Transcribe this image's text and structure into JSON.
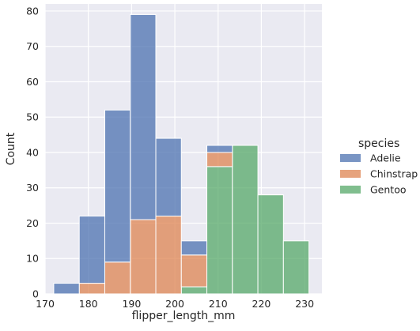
{
  "chart_data": {
    "type": "bar",
    "stacked": true,
    "xlabel": "flipper_length_mm",
    "ylabel": "Count",
    "xlim": [
      170,
      234
    ],
    "ylim": [
      0,
      82
    ],
    "xticks": [
      170,
      180,
      190,
      200,
      210,
      220,
      230
    ],
    "yticks": [
      0,
      10,
      20,
      30,
      40,
      50,
      60,
      70,
      80
    ],
    "grid": true,
    "legend": {
      "title": "species",
      "placement": "right"
    },
    "bin_edges": [
      172,
      177.9,
      183.8,
      189.7,
      195.6,
      201.5,
      207.4,
      213.3,
      219.2,
      225.1,
      231
    ],
    "series": [
      {
        "name": "Gentoo",
        "color": "#55a868",
        "values": [
          0,
          0,
          0,
          0,
          0,
          2,
          36,
          42,
          28,
          15
        ]
      },
      {
        "name": "Chinstrap",
        "color": "#dd8452",
        "values": [
          0,
          3,
          9,
          21,
          22,
          9,
          4,
          0,
          0,
          0
        ]
      },
      {
        "name": "Adelie",
        "color": "#4c72b0",
        "values": [
          3,
          19,
          43,
          58,
          22,
          4,
          2,
          0,
          0,
          0
        ]
      }
    ],
    "background_color": "#eaeaf2",
    "grid_color": "#ffffff"
  }
}
